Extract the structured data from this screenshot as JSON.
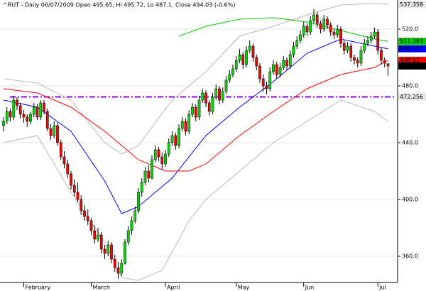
{
  "chart_data": {
    "type": "candlestick",
    "title": "^RUT - Daily 06/07/2009 Open 495.65, Hi 495.72, Lo 487.1, Close 494.03 (-0.6%)",
    "categories": [
      null,
      null,
      null,
      null,
      null,
      null,
      "February",
      null,
      null,
      null,
      null,
      null,
      null,
      null,
      null,
      null,
      null,
      null,
      null,
      null,
      null,
      null,
      null,
      null,
      null,
      null,
      "March",
      null,
      null,
      null,
      null,
      null,
      null,
      null,
      null,
      null,
      null,
      null,
      null,
      null,
      null,
      null,
      null,
      null,
      null,
      null,
      null,
      null,
      "April",
      null,
      null,
      null,
      null,
      null,
      null,
      null,
      null,
      null,
      null,
      null,
      null,
      null,
      null,
      null,
      null,
      null,
      null,
      null,
      null,
      "May",
      null,
      null,
      null,
      null,
      null,
      null,
      null,
      null,
      null,
      null,
      null,
      null,
      null,
      null,
      null,
      null,
      null,
      null,
      null,
      "Jun",
      null,
      null,
      null,
      null,
      null,
      null,
      null,
      null,
      null,
      null,
      null,
      null,
      null,
      null,
      null,
      null,
      null,
      null,
      null,
      null,
      null,
      "Jul",
      null,
      null,
      null
    ],
    "ohlc": [
      [
        452,
        458,
        448,
        455
      ],
      [
        455,
        465,
        453,
        462
      ],
      [
        462,
        464,
        455,
        458
      ],
      [
        458,
        473,
        456,
        470
      ],
      [
        470,
        472,
        463,
        466
      ],
      [
        466,
        468,
        457,
        460
      ],
      [
        460,
        463,
        454,
        458
      ],
      [
        458,
        460,
        451,
        455
      ],
      [
        455,
        462,
        453,
        460
      ],
      [
        460,
        468,
        458,
        465
      ],
      [
        465,
        467,
        456,
        458
      ],
      [
        458,
        470,
        456,
        468
      ],
      [
        468,
        470,
        460,
        462
      ],
      [
        462,
        464,
        448,
        450
      ],
      [
        450,
        453,
        442,
        445
      ],
      [
        445,
        455,
        443,
        452
      ],
      [
        452,
        454,
        438,
        440
      ],
      [
        440,
        442,
        428,
        430
      ],
      [
        430,
        434,
        422,
        425
      ],
      [
        425,
        428,
        415,
        418
      ],
      [
        418,
        420,
        407,
        410
      ],
      [
        410,
        414,
        402,
        405
      ],
      [
        405,
        412,
        398,
        400
      ],
      [
        400,
        403,
        389,
        392
      ],
      [
        392,
        396,
        385,
        388
      ],
      [
        388,
        393,
        382,
        385
      ],
      [
        385,
        387,
        375,
        378
      ],
      [
        378,
        382,
        369,
        372
      ],
      [
        372,
        380,
        370,
        375
      ],
      [
        375,
        377,
        362,
        365
      ],
      [
        365,
        368,
        358,
        362
      ],
      [
        362,
        371,
        360,
        368
      ],
      [
        368,
        370,
        355,
        358
      ],
      [
        358,
        361,
        349,
        352
      ],
      [
        352,
        356,
        344,
        348
      ],
      [
        348,
        358,
        346,
        355
      ],
      [
        355,
        372,
        354,
        370
      ],
      [
        370,
        381,
        368,
        378
      ],
      [
        378,
        388,
        375,
        385
      ],
      [
        385,
        395,
        383,
        392
      ],
      [
        392,
        408,
        390,
        405
      ],
      [
        405,
        415,
        402,
        412
      ],
      [
        412,
        423,
        410,
        420
      ],
      [
        420,
        424,
        412,
        415
      ],
      [
        415,
        431,
        414,
        428
      ],
      [
        428,
        438,
        426,
        435
      ],
      [
        435,
        437,
        427,
        430
      ],
      [
        430,
        433,
        421,
        425
      ],
      [
        425,
        435,
        423,
        432
      ],
      [
        432,
        443,
        430,
        440
      ],
      [
        440,
        448,
        438,
        445
      ],
      [
        445,
        447,
        435,
        438
      ],
      [
        438,
        453,
        436,
        450
      ],
      [
        450,
        458,
        448,
        455
      ],
      [
        455,
        457,
        445,
        448
      ],
      [
        448,
        463,
        446,
        460
      ],
      [
        460,
        468,
        458,
        465
      ],
      [
        465,
        467,
        455,
        458
      ],
      [
        458,
        473,
        456,
        470
      ],
      [
        470,
        478,
        468,
        475
      ],
      [
        475,
        477,
        465,
        468
      ],
      [
        468,
        470,
        459,
        462
      ],
      [
        462,
        475,
        460,
        472
      ],
      [
        472,
        481,
        470,
        478
      ],
      [
        478,
        480,
        467,
        470
      ],
      [
        470,
        479,
        468,
        476
      ],
      [
        476,
        487,
        474,
        484
      ],
      [
        484,
        491,
        482,
        488
      ],
      [
        488,
        495,
        486,
        492
      ],
      [
        492,
        501,
        490,
        498
      ],
      [
        498,
        506,
        496,
        502
      ],
      [
        502,
        504,
        492,
        495
      ],
      [
        495,
        508,
        493,
        505
      ],
      [
        505,
        512,
        503,
        508
      ],
      [
        508,
        510,
        497,
        500
      ],
      [
        500,
        502,
        491,
        494
      ],
      [
        494,
        496,
        482,
        485
      ],
      [
        485,
        488,
        476,
        480
      ],
      [
        480,
        483,
        474,
        478
      ],
      [
        478,
        493,
        476,
        490
      ],
      [
        490,
        498,
        488,
        495
      ],
      [
        495,
        497,
        485,
        488
      ],
      [
        488,
        496,
        486,
        493
      ],
      [
        493,
        501,
        491,
        498
      ],
      [
        498,
        500,
        491,
        494
      ],
      [
        494,
        505,
        492,
        502
      ],
      [
        502,
        511,
        500,
        508
      ],
      [
        508,
        515,
        506,
        512
      ],
      [
        512,
        519,
        510,
        516
      ],
      [
        516,
        525,
        514,
        522
      ],
      [
        522,
        524,
        515,
        518
      ],
      [
        518,
        529,
        516,
        526
      ],
      [
        526,
        534,
        524,
        530
      ],
      [
        530,
        532,
        521,
        524
      ],
      [
        524,
        526,
        517,
        520
      ],
      [
        520,
        530,
        518,
        527
      ],
      [
        527,
        529,
        520,
        523
      ],
      [
        523,
        525,
        515,
        518
      ],
      [
        518,
        520,
        513,
        516
      ],
      [
        516,
        523,
        514,
        520
      ],
      [
        520,
        522,
        507,
        510
      ],
      [
        510,
        512,
        502,
        505
      ],
      [
        505,
        511,
        503,
        508
      ],
      [
        508,
        510,
        497,
        500
      ],
      [
        500,
        502,
        495,
        498
      ],
      [
        498,
        500,
        493,
        496
      ],
      [
        496,
        508,
        494,
        505
      ],
      [
        505,
        513,
        503,
        510
      ],
      [
        510,
        515,
        508,
        512
      ],
      [
        512,
        518,
        510,
        515
      ],
      [
        515,
        521,
        513,
        518
      ],
      [
        518,
        520,
        502,
        505
      ],
      [
        505,
        507,
        495,
        498
      ],
      [
        498,
        500,
        493,
        496
      ],
      [
        495.65,
        495.72,
        487.1,
        494.03
      ]
    ],
    "up_color": "#00dd00",
    "down_color": "#ff0000",
    "lines": [
      {
        "color": "#b8b8b8",
        "x": [
          0,
          10,
          20,
          25,
          30,
          35,
          40,
          50,
          60,
          70,
          80,
          90,
          100,
          110,
          114
        ],
        "values": [
          485,
          482,
          470,
          455,
          440,
          432,
          438,
          470,
          490,
          515,
          522,
          530,
          537,
          538,
          537.358
        ]
      },
      {
        "color": "#b8b8b8",
        "x": [
          0,
          10,
          20,
          30,
          35,
          40,
          47,
          55,
          60,
          70,
          80,
          90,
          100,
          110,
          114
        ],
        "values": [
          440,
          445,
          405,
          370,
          345,
          343,
          350,
          385,
          400,
          420,
          440,
          455,
          470,
          462,
          455
        ]
      },
      {
        "color": "#00cc00",
        "x": [
          52,
          60,
          70,
          80,
          90,
          100,
          110,
          114
        ],
        "values": [
          515,
          522,
          527,
          528,
          525,
          519,
          513,
          511.383
        ]
      },
      {
        "color": "#0000ff",
        "x": [
          0,
          10,
          20,
          30,
          35,
          40,
          50,
          60,
          70,
          80,
          90,
          100,
          110,
          114
        ],
        "values": [
          470,
          465,
          448,
          413,
          390,
          395,
          415,
          445,
          465,
          483,
          503,
          513,
          508,
          506.127
        ]
      },
      {
        "color": "#ff0000",
        "x": [
          0,
          10,
          20,
          30,
          40,
          48,
          55,
          60,
          70,
          80,
          90,
          100,
          110,
          114
        ],
        "values": [
          478,
          475,
          465,
          448,
          428,
          420,
          420,
          425,
          445,
          462,
          478,
          488,
          493,
          498.03
        ]
      }
    ],
    "reference_line": {
      "value": 472.256,
      "color": "#8800ee"
    },
    "ylim": [
      341.5,
      540.5
    ],
    "yticks": [
      {
        "value": 360,
        "label": "360.0"
      },
      {
        "value": 400,
        "label": "400.0"
      },
      {
        "value": 440,
        "label": "440.0"
      },
      {
        "value": 480,
        "label": "480.0"
      },
      {
        "value": 520,
        "label": "520.0"
      }
    ],
    "grid": true
  }
}
